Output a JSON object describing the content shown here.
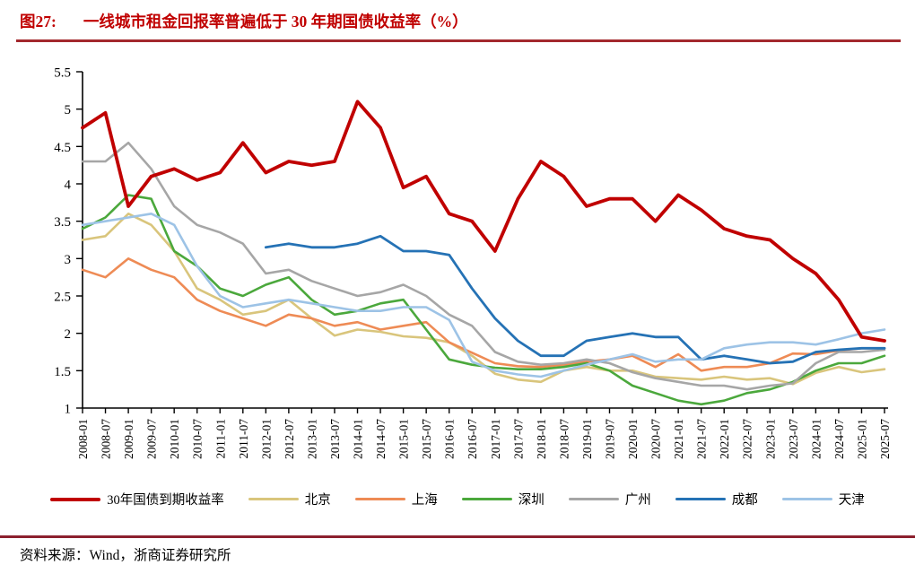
{
  "figure": {
    "label": "图27:",
    "title": "一线城市租金回报率普遍低于 30 年期国债收益率（%）"
  },
  "footer": {
    "source": "资料来源：Wind，浙商证券研究所"
  },
  "colors": {
    "title_red": "#C00000",
    "top_rule": "#A3282D",
    "bottom_rule": "#8C202E",
    "axis": "#000000"
  },
  "chart_data": {
    "type": "line",
    "title": "一线城市租金回报率普遍低于 30 年期国债收益率（%）",
    "xlabel": "",
    "ylabel": "",
    "ylim": [
      1,
      5.5
    ],
    "y_ticks": [
      5.5,
      5,
      4.5,
      4,
      3.5,
      3,
      2.5,
      2,
      1.5,
      1
    ],
    "grid": false,
    "legend_position": "bottom",
    "x_labels": [
      "2008-01",
      "2008-07",
      "2009-01",
      "2009-07",
      "2010-01",
      "2010-07",
      "2011-01",
      "2011-07",
      "2012-01",
      "2012-07",
      "2013-01",
      "2013-07",
      "2014-01",
      "2014-07",
      "2015-01",
      "2015-07",
      "2016-01",
      "2016-07",
      "2017-01",
      "2017-07",
      "2018-01",
      "2018-07",
      "2019-01",
      "2019-07",
      "2020-01",
      "2020-07",
      "2021-01",
      "2021-07",
      "2022-01",
      "2022-07",
      "2023-01",
      "2023-07",
      "2024-01",
      "2024-07",
      "2025-01",
      "2025-07"
    ],
    "series": [
      {
        "name": "30年国债到期收益率",
        "slug": "bond-30y",
        "color": "#C00000",
        "width": 3.8,
        "values": [
          4.75,
          4.95,
          3.7,
          4.1,
          4.2,
          4.05,
          4.15,
          4.55,
          4.15,
          4.3,
          4.25,
          4.3,
          5.1,
          4.75,
          3.95,
          4.1,
          3.6,
          3.5,
          3.1,
          3.8,
          4.3,
          4.1,
          3.7,
          3.8,
          3.8,
          3.5,
          3.85,
          3.65,
          3.4,
          3.3,
          3.25,
          3.0,
          2.8,
          2.45,
          1.95,
          1.9
        ]
      },
      {
        "name": "北京",
        "slug": "beijing",
        "color": "#D9C57C",
        "width": 2.6,
        "values": [
          3.25,
          3.3,
          3.6,
          3.45,
          3.1,
          2.6,
          2.45,
          2.25,
          2.3,
          2.45,
          2.2,
          1.97,
          2.05,
          2.02,
          1.96,
          1.94,
          1.88,
          1.7,
          1.46,
          1.38,
          1.35,
          1.5,
          1.55,
          1.5,
          1.5,
          1.42,
          1.4,
          1.38,
          1.42,
          1.38,
          1.4,
          1.32,
          1.47,
          1.55,
          1.48,
          1.52
        ]
      },
      {
        "name": "上海",
        "slug": "shanghai",
        "color": "#EE8B55",
        "width": 2.6,
        "values": [
          2.85,
          2.75,
          3.0,
          2.85,
          2.75,
          2.45,
          2.3,
          2.2,
          2.1,
          2.25,
          2.2,
          2.1,
          2.15,
          2.05,
          2.1,
          2.15,
          1.88,
          1.74,
          1.6,
          1.56,
          1.55,
          1.58,
          1.62,
          1.65,
          1.7,
          1.55,
          1.72,
          1.5,
          1.55,
          1.55,
          1.6,
          1.73,
          1.72,
          1.77,
          1.8,
          1.8
        ]
      },
      {
        "name": "深圳",
        "slug": "shenzhen",
        "color": "#4BA83C",
        "width": 2.6,
        "values": [
          3.4,
          3.55,
          3.85,
          3.8,
          3.1,
          2.9,
          2.6,
          2.5,
          2.65,
          2.75,
          2.45,
          2.25,
          2.3,
          2.4,
          2.45,
          2.05,
          1.65,
          1.58,
          1.54,
          1.52,
          1.52,
          1.55,
          1.6,
          1.5,
          1.3,
          1.2,
          1.1,
          1.05,
          1.1,
          1.2,
          1.25,
          1.35,
          1.5,
          1.6,
          1.6,
          1.7
        ]
      },
      {
        "name": "广州",
        "slug": "guangzhou",
        "color": "#A6A6A6",
        "width": 2.6,
        "values": [
          4.3,
          4.3,
          4.55,
          4.2,
          3.7,
          3.45,
          3.35,
          3.2,
          2.8,
          2.85,
          2.7,
          2.6,
          2.5,
          2.55,
          2.65,
          2.5,
          2.25,
          2.1,
          1.75,
          1.62,
          1.58,
          1.6,
          1.65,
          1.6,
          1.48,
          1.4,
          1.35,
          1.3,
          1.3,
          1.25,
          1.3,
          1.33,
          1.6,
          1.75,
          1.75,
          1.78
        ]
      },
      {
        "name": "成都",
        "slug": "chengdu",
        "color": "#2572B5",
        "width": 2.8,
        "values": [
          null,
          null,
          null,
          null,
          null,
          null,
          null,
          null,
          3.15,
          3.2,
          3.15,
          3.15,
          3.2,
          3.3,
          3.1,
          3.1,
          3.05,
          2.6,
          2.2,
          1.9,
          1.7,
          1.7,
          1.9,
          1.95,
          2.0,
          1.95,
          1.95,
          1.65,
          1.7,
          1.65,
          1.6,
          1.62,
          1.75,
          1.78,
          1.8,
          1.8
        ]
      },
      {
        "name": "天津",
        "slug": "tianjin",
        "color": "#9DC3E6",
        "width": 2.6,
        "values": [
          3.45,
          3.5,
          3.55,
          3.6,
          3.45,
          2.9,
          2.5,
          2.35,
          2.4,
          2.45,
          2.4,
          2.35,
          2.3,
          2.3,
          2.35,
          2.35,
          2.18,
          1.62,
          1.5,
          1.45,
          1.42,
          1.5,
          1.58,
          1.65,
          1.72,
          1.62,
          1.65,
          1.65,
          1.8,
          1.85,
          1.88,
          1.88,
          1.85,
          1.92,
          2.0,
          2.05
        ]
      }
    ]
  }
}
